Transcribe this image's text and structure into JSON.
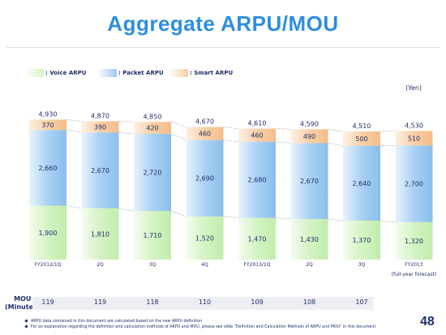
{
  "title": "Aggregate ARPU/MOU",
  "legend": {
    "voice": ": Voice ARPU",
    "packet": ": Packet ARPU",
    "smart": ": Smart ARPU"
  },
  "unit": "(Yen)",
  "colors": {
    "voice": "#d4f3c2",
    "packet": "#9fcbf2",
    "smart": "#f9cfa6",
    "title": "#2e8ee0"
  },
  "chart_data": {
    "type": "bar",
    "stacked": true,
    "categories": [
      "FY2012/1Q",
      "2Q",
      "3Q",
      "4Q",
      "FY2013/1Q",
      "2Q",
      "3Q",
      "FY2013"
    ],
    "category_note": "(full-year forecast)",
    "series": [
      {
        "name": "Voice ARPU",
        "values": [
          1900,
          1810,
          1710,
          1520,
          1470,
          1430,
          1370,
          1320
        ]
      },
      {
        "name": "Packet ARPU",
        "values": [
          2660,
          2670,
          2720,
          2690,
          2680,
          2670,
          2640,
          2700
        ]
      },
      {
        "name": "Smart ARPU",
        "values": [
          370,
          390,
          420,
          460,
          460,
          490,
          500,
          510
        ]
      }
    ],
    "totals": [
      4930,
      4870,
      4850,
      4670,
      4610,
      4590,
      4510,
      4530
    ],
    "value_labels": {
      "voice": [
        "1,900",
        "1,810",
        "1,710",
        "1,520",
        "1,470",
        "1,430",
        "1,370",
        "1,320"
      ],
      "packet": [
        "2,660",
        "2,670",
        "2,720",
        "2,690",
        "2,680",
        "2,670",
        "2,640",
        "2,700"
      ],
      "smart": [
        "370",
        "390",
        "420",
        "460",
        "460",
        "490",
        "500",
        "510"
      ],
      "totals": [
        "4,930",
        "4,870",
        "4,850",
        "4,670",
        "4,610",
        "4,590",
        "4,510",
        "4,530"
      ]
    },
    "ylim": [
      0,
      5100
    ],
    "grid": false,
    "legend_placement": "top-left"
  },
  "mou": {
    "label_line1": "MOU",
    "label_line2": "(Minutes)",
    "values": [
      "119",
      "119",
      "118",
      "110",
      "109",
      "108",
      "107"
    ]
  },
  "notes": [
    "ARPU data contained in this document are calculated based on the new ARPU definition",
    "For an explanation regarding the definition and calculation methods of ARPU and MOU, please see slide \"Definition and Calculation Methods of ARPU and MOU\" in this document"
  ],
  "page_number": "48"
}
